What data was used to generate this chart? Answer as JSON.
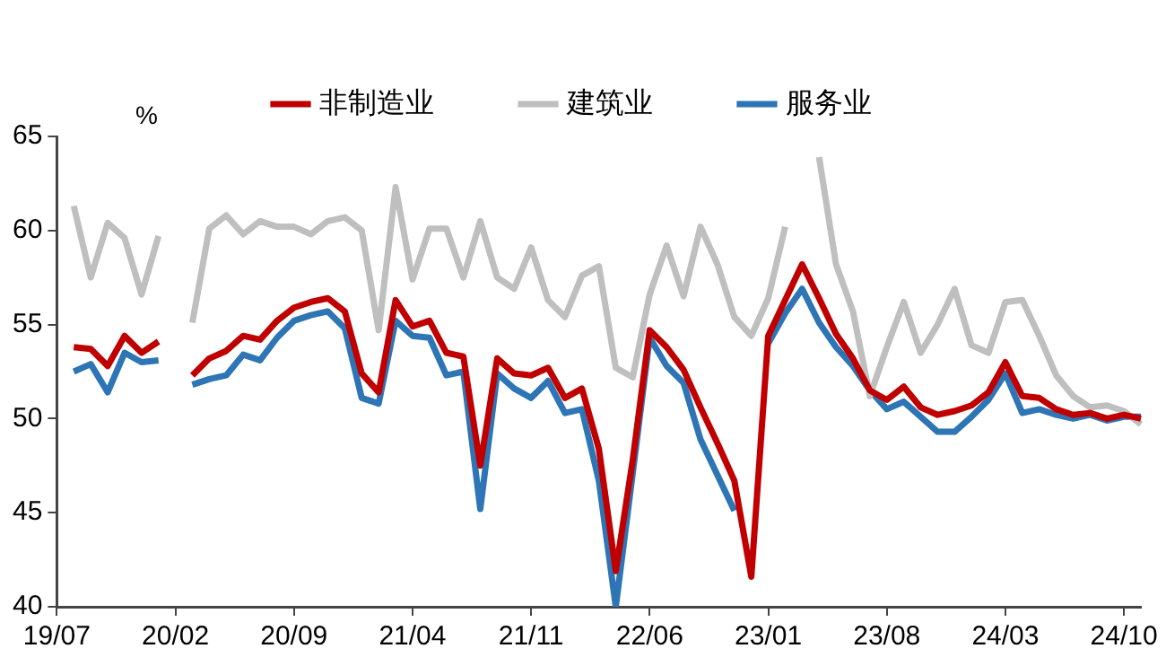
{
  "chart_data": {
    "type": "line",
    "ylabel": "%",
    "categories": [
      "19/07",
      null,
      null,
      null,
      null,
      null,
      null,
      "20/02",
      null,
      null,
      null,
      null,
      null,
      null,
      "20/09",
      null,
      null,
      null,
      null,
      null,
      null,
      "21/04",
      null,
      null,
      null,
      null,
      null,
      null,
      "21/11",
      null,
      null,
      null,
      null,
      null,
      null,
      "22/06",
      null,
      null,
      null,
      null,
      null,
      null,
      "23/01",
      null,
      null,
      null,
      null,
      null,
      null,
      "23/08",
      null,
      null,
      null,
      null,
      null,
      null,
      "24/03",
      null,
      null,
      null,
      null,
      null,
      null,
      "24/10",
      null
    ],
    "series": [
      {
        "name": "非制造业",
        "color": "#c00000",
        "values": [
          null,
          53.8,
          53.7,
          52.8,
          54.4,
          53.5,
          54.1,
          null,
          52.3,
          53.2,
          53.6,
          54.4,
          54.2,
          55.2,
          55.9,
          56.2,
          56.4,
          55.7,
          52.4,
          51.4,
          56.3,
          54.9,
          55.2,
          53.5,
          53.3,
          47.5,
          53.2,
          52.4,
          52.3,
          52.7,
          51.1,
          51.6,
          48.4,
          41.9,
          47.8,
          54.7,
          53.8,
          52.6,
          50.6,
          48.7,
          46.7,
          41.6,
          54.4,
          56.3,
          58.2,
          56.4,
          54.5,
          53.2,
          51.5,
          51.0,
          51.7,
          50.6,
          50.2,
          50.4,
          50.7,
          51.4,
          53.0,
          51.2,
          51.1,
          50.5,
          50.2,
          50.3,
          50.0,
          50.2,
          50.0
        ]
      },
      {
        "name": "建筑业",
        "color": "#bfbfbf",
        "values": [
          null,
          61.3,
          57.5,
          60.4,
          59.6,
          56.6,
          59.7,
          null,
          55.1,
          60.1,
          60.8,
          59.8,
          60.5,
          60.2,
          60.2,
          59.8,
          60.5,
          60.7,
          60.0,
          54.7,
          62.3,
          57.4,
          60.1,
          60.1,
          57.5,
          60.5,
          57.5,
          56.9,
          59.1,
          56.3,
          55.4,
          57.6,
          58.1,
          52.7,
          52.2,
          56.6,
          59.2,
          56.5,
          60.2,
          58.2,
          55.4,
          54.4,
          56.4,
          60.2,
          null,
          63.9,
          58.2,
          55.7,
          51.2,
          53.8,
          56.2,
          53.5,
          55.0,
          56.9,
          53.9,
          53.5,
          56.2,
          56.3,
          54.4,
          52.3,
          51.2,
          50.6,
          50.7,
          50.4,
          49.7
        ]
      },
      {
        "name": "服务业",
        "color": "#2e75b6",
        "values": [
          null,
          52.5,
          52.9,
          51.4,
          53.5,
          53.0,
          53.1,
          null,
          51.8,
          52.1,
          52.3,
          53.4,
          53.1,
          54.3,
          55.2,
          55.5,
          55.7,
          54.8,
          51.1,
          50.8,
          55.2,
          54.4,
          54.3,
          52.3,
          52.5,
          45.2,
          52.4,
          51.6,
          51.1,
          52.0,
          50.3,
          50.5,
          46.7,
          40.0,
          47.1,
          54.3,
          52.8,
          51.9,
          48.9,
          47.0,
          45.1,
          null,
          54.0,
          55.6,
          56.9,
          55.1,
          53.8,
          52.8,
          51.5,
          50.5,
          50.9,
          50.1,
          49.3,
          49.3,
          50.1,
          51.0,
          52.4,
          50.3,
          50.5,
          50.2,
          50.0,
          50.2,
          49.9,
          50.1,
          50.1
        ]
      }
    ],
    "ylim": [
      40,
      65
    ],
    "yticks": [
      40,
      45,
      50,
      55,
      60,
      65
    ],
    "grid": false,
    "legend": "top",
    "marker": "none",
    "line_style": "solid"
  }
}
